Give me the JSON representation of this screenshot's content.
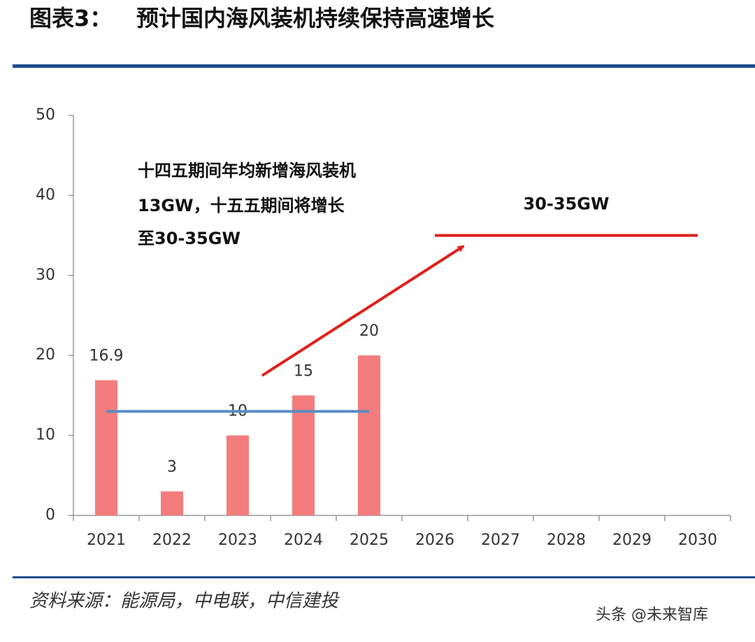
{
  "chart_data": {
    "type": "bar",
    "figure_label": "图表3：",
    "title": "预计国内海风装机持续保持高速增长",
    "categories": [
      "2021",
      "2022",
      "2023",
      "2024",
      "2025",
      "2026",
      "2027",
      "2028",
      "2029",
      "2030"
    ],
    "values": [
      16.9,
      3,
      10,
      15,
      20,
      null,
      null,
      null,
      null,
      null
    ],
    "color": "#f47c7c",
    "ylim": [
      0,
      50
    ],
    "yticks": [
      0,
      10,
      20,
      30,
      40,
      50
    ],
    "reference_lines": [
      {
        "value": 13,
        "from": "2021",
        "to": "2025",
        "color": "#5b8cc4"
      },
      {
        "value": 35,
        "from": "2026",
        "to": "2030",
        "color": "#e0201a",
        "label": "30-35GW"
      }
    ],
    "annotation": [
      "十四五期间年均新增海风装机",
      "13GW，十五五期间将增长",
      "至30-35GW"
    ],
    "source": "资料来源：能源局，中电联，中信建投",
    "watermark": "头条 @未来智库"
  }
}
